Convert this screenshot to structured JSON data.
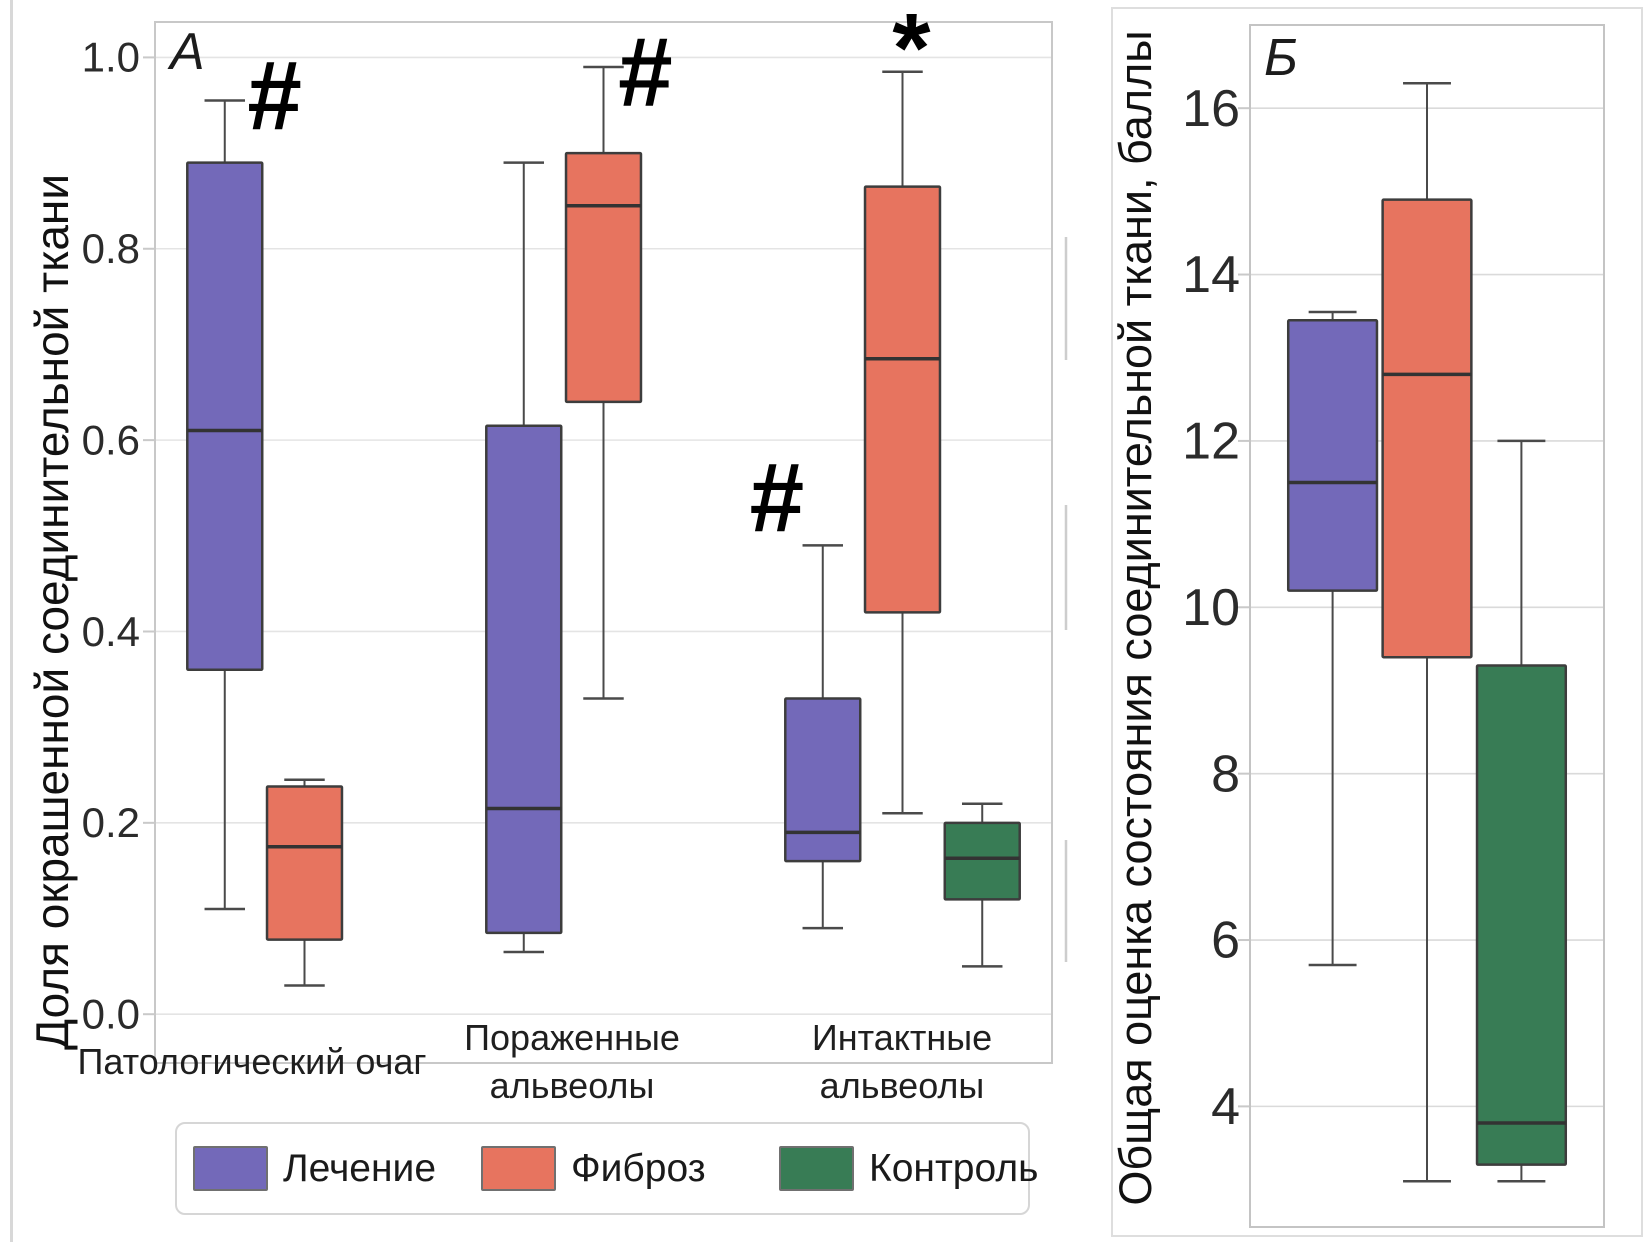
{
  "figure_title": "",
  "panels": {
    "a": {
      "letter": "А",
      "y_axis_title": "Доля окрашенной соединительной ткани"
    },
    "b": {
      "letter": "Б",
      "y_axis_title": "Общая оценка состояния соединительной ткани, баллы"
    }
  },
  "legend": {
    "items": [
      {
        "label": "Лечение",
        "color": "#7369b9"
      },
      {
        "label": "Фиброз",
        "color": "#e7745f"
      },
      {
        "label": "Контроль",
        "color": "#387c55"
      }
    ]
  },
  "chart_data": [
    {
      "type": "boxplot",
      "panel_label": "А",
      "ylabel": "Доля окрашенной соединительной ткани",
      "ylim": [
        -0.051,
        1.037
      ],
      "grid": true,
      "legend_position": "bottom",
      "yticks": [
        {
          "v": 0.0,
          "label": "0.0"
        },
        {
          "v": 0.2,
          "label": "0.2"
        },
        {
          "v": 0.4,
          "label": "0.4"
        },
        {
          "v": 0.6,
          "label": "0.6"
        },
        {
          "v": 0.8,
          "label": "0.8"
        },
        {
          "v": 1.0,
          "label": "1.0"
        }
      ],
      "categories": [
        {
          "lines": [
            "Патологический очаг"
          ]
        },
        {
          "lines": [
            "Пораженные",
            "альвеолы"
          ]
        },
        {
          "lines": [
            "Интактные",
            "альвеолы"
          ]
        }
      ],
      "series": [
        {
          "name": "Лечение",
          "color": "#7369b9",
          "boxes": [
            {
              "lo": 0.11,
              "q1": 0.36,
              "med": 0.61,
              "q3": 0.89,
              "hi": 0.955
            },
            {
              "lo": 0.065,
              "q1": 0.085,
              "med": 0.215,
              "q3": 0.615,
              "hi": 0.89
            },
            {
              "lo": 0.09,
              "q1": 0.16,
              "med": 0.19,
              "q3": 0.33,
              "hi": 0.49
            }
          ]
        },
        {
          "name": "Фиброз",
          "color": "#e7745f",
          "boxes": [
            {
              "lo": 0.03,
              "q1": 0.078,
              "med": 0.175,
              "q3": 0.238,
              "hi": 0.245
            },
            {
              "lo": 0.33,
              "q1": 0.64,
              "med": 0.845,
              "q3": 0.9,
              "hi": 0.99
            },
            {
              "lo": 0.21,
              "q1": 0.42,
              "med": 0.685,
              "q3": 0.865,
              "hi": 0.985
            }
          ]
        },
        {
          "name": "Контроль",
          "color": "#387c55",
          "boxes": [
            null,
            null,
            {
              "lo": 0.05,
              "q1": 0.12,
              "med": 0.163,
              "q3": 0.2,
              "hi": 0.22
            }
          ]
        }
      ],
      "annotations": [
        {
          "text": "#",
          "cat": 0,
          "dx": -0.1,
          "y": 0.96
        },
        {
          "text": "#",
          "cat": 1,
          "dx": 0.14,
          "y": 0.985
        },
        {
          "text": "#",
          "cat": 2,
          "dx": -0.42,
          "y": 0.54
        },
        {
          "text": "*",
          "cat": 2,
          "dx": 0.03,
          "y": 1.01
        }
      ]
    },
    {
      "type": "boxplot",
      "panel_label": "Б",
      "ylabel": "Общая оценка состояния соединительной ткани, баллы",
      "ylim": [
        2.55,
        17.0
      ],
      "grid": true,
      "yticks": [
        {
          "v": 4,
          "label": "4"
        },
        {
          "v": 6,
          "label": "6"
        },
        {
          "v": 8,
          "label": "8"
        },
        {
          "v": 10,
          "label": "10"
        },
        {
          "v": 12,
          "label": "12"
        },
        {
          "v": 14,
          "label": "14"
        },
        {
          "v": 16,
          "label": "16"
        }
      ],
      "categories": [
        {
          "lines": [
            ""
          ]
        }
      ],
      "series": [
        {
          "name": "Лечение",
          "color": "#7369b9",
          "boxes": [
            {
              "lo": 5.7,
              "q1": 10.2,
              "med": 11.5,
              "q3": 13.45,
              "hi": 13.55
            }
          ]
        },
        {
          "name": "Фиброз",
          "color": "#e7745f",
          "boxes": [
            {
              "lo": 3.1,
              "q1": 9.4,
              "med": 12.8,
              "q3": 14.9,
              "hi": 16.3
            }
          ]
        },
        {
          "name": "Контроль",
          "color": "#387c55",
          "boxes": [
            {
              "lo": 3.1,
              "q1": 3.3,
              "med": 3.8,
              "q3": 9.3,
              "hi": 12.0
            }
          ]
        }
      ],
      "annotations": []
    }
  ]
}
